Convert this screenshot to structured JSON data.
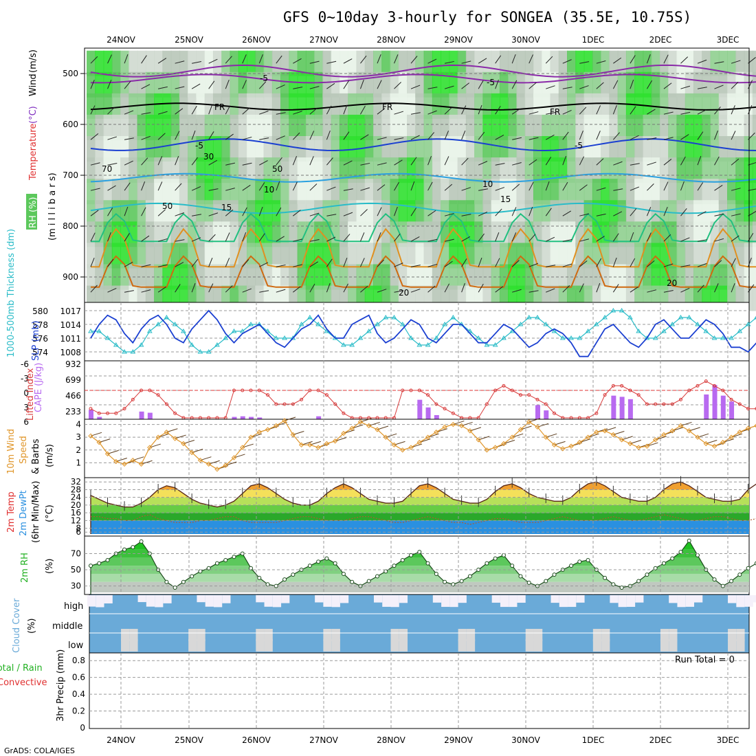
{
  "title": "GFS 0~10day 3-hourly for SONGEA (35.5E, 10.75S)",
  "footer": "GrADS: COLA/IGES",
  "run_total": "Run Total = 0",
  "x_dates": [
    "24NOV",
    "25NOV",
    "26NOV",
    "27NOV",
    "28NOV",
    "29NOV",
    "30NOV",
    "1DEC",
    "2DEC",
    "3DEC"
  ],
  "colors": {
    "rh_green": "#5cc85c",
    "grid": "#888888",
    "slp": "#1a3fd1",
    "thick": "#2bbcc8",
    "li": "#d83a3a",
    "cape": "#b86af0",
    "wind": "#e0962a",
    "temp_fill": "#f0a030",
    "dew_fill": "#2a90e0",
    "rh2m": "#22c622",
    "cloud": "#6aaad8",
    "cloud_clear": "#f4f0fa"
  },
  "chart_data": [
    {
      "panel": "upper_air",
      "type": "heatmap",
      "ylabel_parts": [
        "RH (%)",
        "Temperature",
        "(°C)",
        "Wind",
        "(m/s)"
      ],
      "ylabel2": "(m i l l i b a r s)",
      "yticks": [
        500,
        600,
        700,
        800,
        900
      ],
      "ylim": [
        950,
        450
      ],
      "contour_labels": [
        "-5",
        "-5",
        "FR",
        "FR",
        "FR",
        "-5",
        "-5",
        "10",
        "10",
        "15",
        "15",
        "20",
        "20",
        "30",
        "50",
        "50",
        "70"
      ]
    },
    {
      "panel": "slp_thickness",
      "type": "line",
      "ylabel_left": "1000-500mb Thickness (dm)",
      "ylabel_right": "SLP (mb)",
      "left_ticks": [
        "580",
        "578",
        "576",
        "574"
      ],
      "right_ticks": [
        "1017",
        "1014",
        "1011",
        "1008"
      ],
      "slp": [
        1011,
        1014,
        1016,
        1015,
        1012,
        1010,
        1013,
        1015,
        1016,
        1014,
        1011,
        1010,
        1013,
        1015,
        1017,
        1015,
        1012,
        1010,
        1012,
        1013,
        1014,
        1012,
        1010,
        1009,
        1011,
        1013,
        1014,
        1016,
        1013,
        1011,
        1011,
        1014,
        1015,
        1016,
        1012,
        1010,
        1011,
        1013,
        1015,
        1014,
        1011,
        1010,
        1012,
        1014,
        1014,
        1012,
        1010,
        1010,
        1012,
        1014,
        1013,
        1011,
        1009,
        1010,
        1012,
        1013,
        1012,
        1010,
        1007,
        1007,
        1010,
        1013,
        1014,
        1012,
        1010,
        1009,
        1011,
        1014,
        1015,
        1013,
        1011,
        1011,
        1013,
        1015,
        1014,
        1012,
        1009,
        1009,
        1008,
        1010,
        1011
      ],
      "thickness": [
        577,
        577,
        576,
        575,
        574,
        574,
        575,
        577,
        578,
        579,
        578,
        577,
        575,
        574,
        574,
        575,
        576,
        577,
        577,
        578,
        578,
        577,
        576,
        576,
        576,
        578,
        579,
        578,
        577,
        576,
        575,
        575,
        576,
        577,
        578,
        579,
        579,
        578,
        576,
        575,
        575,
        576,
        578,
        579,
        578,
        577,
        576,
        575,
        575,
        576,
        577,
        578,
        579,
        579,
        578,
        577,
        576,
        576,
        576,
        577,
        578,
        579,
        580,
        580,
        579,
        577,
        576,
        576,
        577,
        578,
        579,
        579,
        578,
        577,
        576,
        576,
        576,
        577,
        578,
        579,
        578,
        577
      ]
    },
    {
      "panel": "lifted_cape",
      "type": "bar",
      "ylabel_left": "Lifted Index",
      "ylabel_right": "CAPE (J/kg)",
      "li_ticks": [
        "-6",
        "-3",
        "0",
        "3",
        "6"
      ],
      "cape_ticks": [
        "932",
        "699",
        "466",
        "233"
      ],
      "cape": [
        160,
        40,
        0,
        0,
        0,
        0,
        130,
        110,
        0,
        0,
        0,
        0,
        0,
        0,
        0,
        0,
        0,
        40,
        50,
        40,
        30,
        0,
        0,
        0,
        0,
        0,
        0,
        50,
        0,
        0,
        0,
        0,
        0,
        0,
        0,
        0,
        0,
        0,
        0,
        330,
        200,
        70,
        0,
        0,
        0,
        0,
        0,
        0,
        0,
        0,
        0,
        0,
        0,
        240,
        150,
        0,
        0,
        0,
        0,
        0,
        0,
        0,
        400,
        380,
        340,
        0,
        0,
        0,
        0,
        0,
        0,
        0,
        0,
        420,
        580,
        400,
        300,
        0,
        0,
        0,
        0,
        50
      ],
      "li": [
        4,
        5,
        5,
        5,
        4,
        2,
        0,
        0,
        1,
        3,
        5,
        6,
        6,
        6,
        6,
        6,
        6,
        0,
        0,
        0,
        0,
        1,
        3,
        3,
        3,
        2,
        0,
        0,
        1,
        3,
        5,
        6,
        6,
        6,
        6,
        6,
        6,
        0,
        0,
        0,
        1,
        3,
        4,
        5,
        6,
        6,
        6,
        3,
        0,
        -1,
        0,
        1,
        1,
        2,
        3,
        5,
        6,
        6,
        6,
        6,
        5,
        1,
        -1,
        -1,
        0,
        1,
        3,
        3,
        3,
        3,
        2,
        0,
        -1,
        -2,
        -1,
        0,
        2,
        3,
        4,
        4,
        3,
        0
      ]
    },
    {
      "panel": "wind10m",
      "type": "line",
      "ylabel_parts": [
        "10m Wind",
        "Speed",
        "& Barbs",
        "(m/s)"
      ],
      "yticks": [
        "1",
        "2",
        "3",
        "4"
      ],
      "speed": [
        3.1,
        2.6,
        1.7,
        1.1,
        0.9,
        1.2,
        0.9,
        2.2,
        3.0,
        3.4,
        2.9,
        2.5,
        1.8,
        1.2,
        0.9,
        0.5,
        0.8,
        1.4,
        2.2,
        3.0,
        3.4,
        3.6,
        3.9,
        4.3,
        3.2,
        2.4,
        2.4,
        2.2,
        2.5,
        2.7,
        3.3,
        3.7,
        4.2,
        3.9,
        3.6,
        3.0,
        2.4,
        2.0,
        2.2,
        2.6,
        3.0,
        3.4,
        3.8,
        4.0,
        3.9,
        3.5,
        2.8,
        2.0,
        2.2,
        2.5,
        3.0,
        3.6,
        4.2,
        3.8,
        3.0,
        2.4,
        2.1,
        2.3,
        2.6,
        3.0,
        3.4,
        3.5,
        3.2,
        2.8,
        2.5,
        2.2,
        2.3,
        2.8,
        3.2,
        3.5,
        3.9,
        3.5,
        3.0,
        2.5,
        2.3,
        2.6,
        3.0,
        3.4,
        3.7,
        3.9,
        3.5,
        3.3
      ]
    },
    {
      "panel": "temp2m",
      "type": "area",
      "ylabel_parts": [
        "2m Temp",
        "2m DewPt",
        "(6hr Min/Max)",
        "(°C)"
      ],
      "yticks": [
        "32",
        "28",
        "24",
        "20",
        "16",
        "12",
        "8",
        "6"
      ],
      "temp": [
        25,
        23,
        21,
        20,
        19,
        19,
        21,
        24,
        28,
        30,
        29,
        26,
        23,
        21,
        20,
        19,
        20,
        22,
        26,
        30,
        31,
        29,
        26,
        23,
        21,
        20,
        20,
        22,
        26,
        29,
        31,
        29,
        26,
        23,
        22,
        21,
        21,
        22,
        26,
        30,
        31,
        29,
        26,
        23,
        22,
        21,
        21,
        23,
        27,
        30,
        31,
        29,
        26,
        24,
        23,
        22,
        22,
        24,
        28,
        31,
        32,
        30,
        27,
        24,
        23,
        22,
        22,
        24,
        28,
        31,
        32,
        30,
        27,
        24,
        23,
        22,
        22,
        23,
        28,
        31,
        32,
        30,
        27,
        24,
        21
      ],
      "dewpt": [
        14,
        14,
        13,
        13,
        12,
        12,
        14,
        15,
        13,
        12,
        11,
        11,
        11,
        12,
        12,
        13,
        14,
        14,
        12,
        11,
        11,
        11,
        11,
        12,
        13,
        14,
        14,
        13,
        12,
        12,
        12,
        13,
        14,
        14,
        13,
        12,
        11,
        11,
        12,
        13,
        14,
        13,
        12,
        11,
        11,
        10,
        11,
        12,
        13,
        13,
        12,
        11,
        11,
        11,
        12,
        13,
        14,
        13,
        12,
        12,
        12,
        13,
        14,
        13,
        12,
        12,
        13,
        14,
        15,
        14,
        13,
        12,
        12,
        13,
        14,
        14,
        13,
        12,
        12,
        13,
        14,
        15,
        14
      ]
    },
    {
      "panel": "rh2m",
      "type": "area",
      "ylabel_parts": [
        "2m RH",
        "(%)"
      ],
      "yticks": [
        "70",
        "50",
        "30"
      ],
      "rh": [
        55,
        58,
        62,
        70,
        75,
        78,
        85,
        70,
        50,
        35,
        28,
        35,
        42,
        48,
        52,
        58,
        62,
        66,
        70,
        52,
        40,
        32,
        30,
        38,
        44,
        50,
        55,
        60,
        64,
        58,
        45,
        35,
        30,
        36,
        42,
        48,
        55,
        62,
        68,
        72,
        58,
        45,
        35,
        32,
        36,
        42,
        50,
        58,
        64,
        68,
        55,
        42,
        34,
        30,
        36,
        44,
        50,
        55,
        60,
        62,
        50,
        40,
        32,
        28,
        30,
        36,
        44,
        52,
        58,
        64,
        72,
        86,
        68,
        50,
        38,
        30,
        36,
        44,
        52,
        58,
        66,
        76,
        84,
        75,
        60
      ]
    }
  ],
  "cloud": {
    "ylabel_parts": [
      "Cloud Cover",
      "(%)"
    ],
    "rows": [
      "high",
      "middle",
      "low"
    ]
  },
  "precip": {
    "ylabel_parts": [
      "Total / Rain",
      "Convective",
      "3hr Precip (mm)"
    ],
    "yticks": [
      "0.8",
      "0.6",
      "0.4",
      "0.2",
      "0"
    ]
  }
}
